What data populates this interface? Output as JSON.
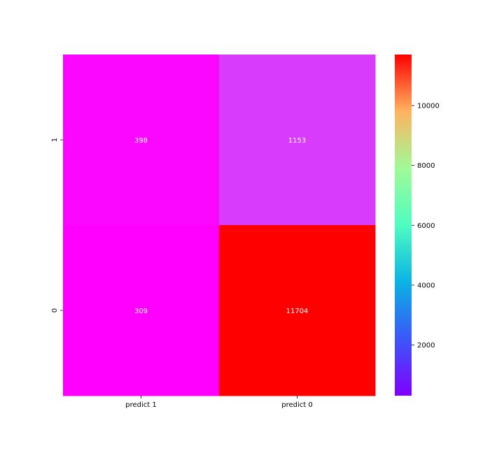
{
  "chart_data": {
    "type": "heatmap",
    "title": "",
    "xlabel": "",
    "ylabel": "",
    "x_categories": [
      "predict 1",
      "predict 0"
    ],
    "y_categories": [
      "1",
      "0"
    ],
    "values": [
      [
        398,
        1153
      ],
      [
        309,
        11704
      ]
    ],
    "colormap": "rainbow",
    "colorbar": {
      "range": [
        309,
        11704
      ],
      "ticks": [
        2000,
        4000,
        6000,
        8000,
        10000
      ]
    },
    "grid": false,
    "colors": {
      "annotation_text": "#ffffff",
      "axis_text": "#000000"
    }
  }
}
